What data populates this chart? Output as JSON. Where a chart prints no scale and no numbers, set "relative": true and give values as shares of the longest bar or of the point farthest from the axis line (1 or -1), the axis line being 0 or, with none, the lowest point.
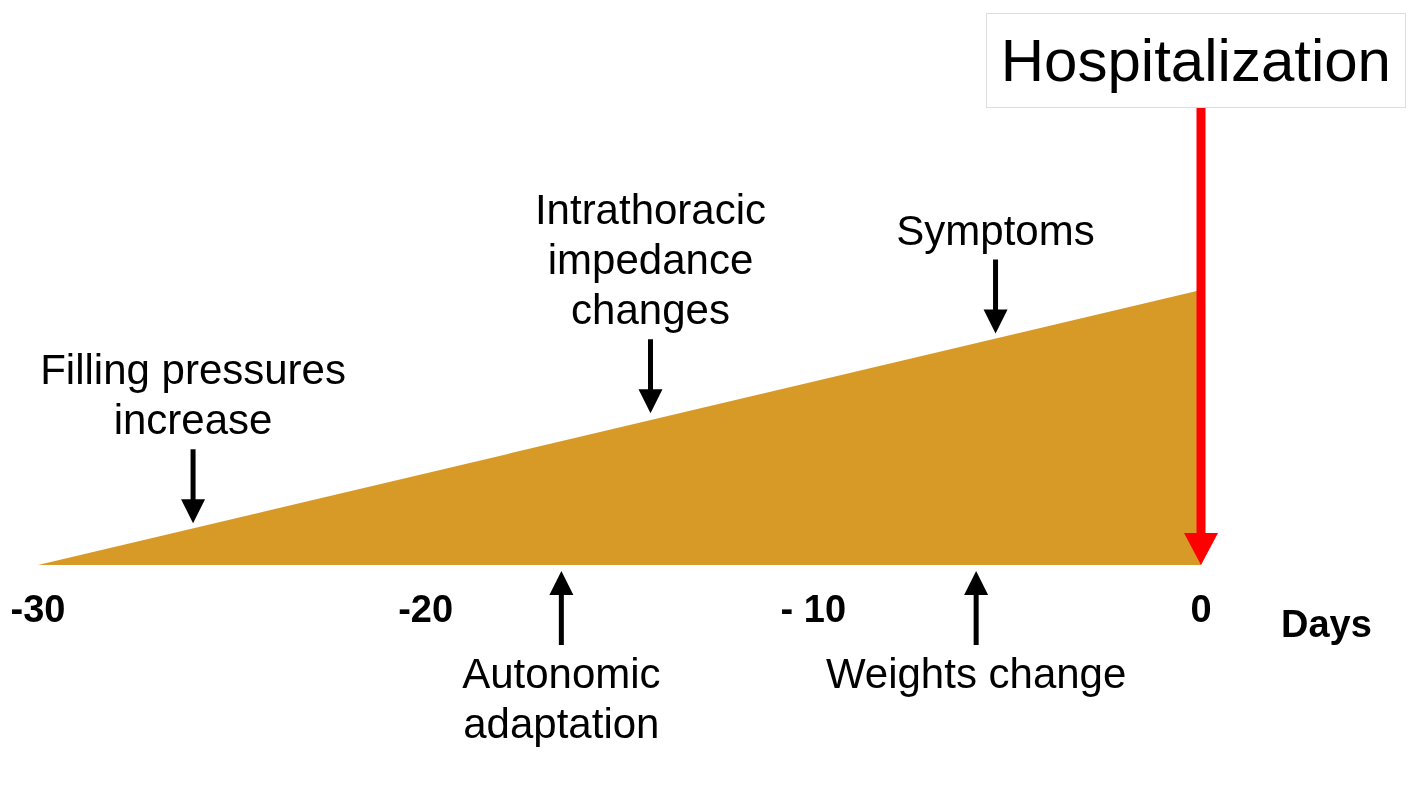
{
  "chart_data": {
    "type": "area",
    "relative": true,
    "x": [
      -30,
      0
    ],
    "values": [
      0,
      1
    ],
    "color": "#d89a26",
    "xlim": [
      -30,
      0
    ],
    "xticks": [
      -30,
      -20,
      {
        "value": -10,
        "label": "- 10"
      },
      0
    ],
    "xlabel": "Days",
    "ref_lines": [
      {
        "axis": "x",
        "value": 0,
        "label": "Hospitalization",
        "color": "#ff0000"
      }
    ],
    "annotations": [
      {
        "text": "Filling pressures increase",
        "x": -26,
        "y": 0.13
      },
      {
        "text": "Intrathoracic impedance changes",
        "x": -14.2,
        "y": 0.53
      },
      {
        "text": "Symptoms",
        "x": -5.3,
        "y": 0.82
      },
      {
        "text": "Autonomic adaptation",
        "x": -16.5,
        "y": 0
      },
      {
        "text": "Weights change",
        "x": -5.8,
        "y": 0
      }
    ]
  }
}
